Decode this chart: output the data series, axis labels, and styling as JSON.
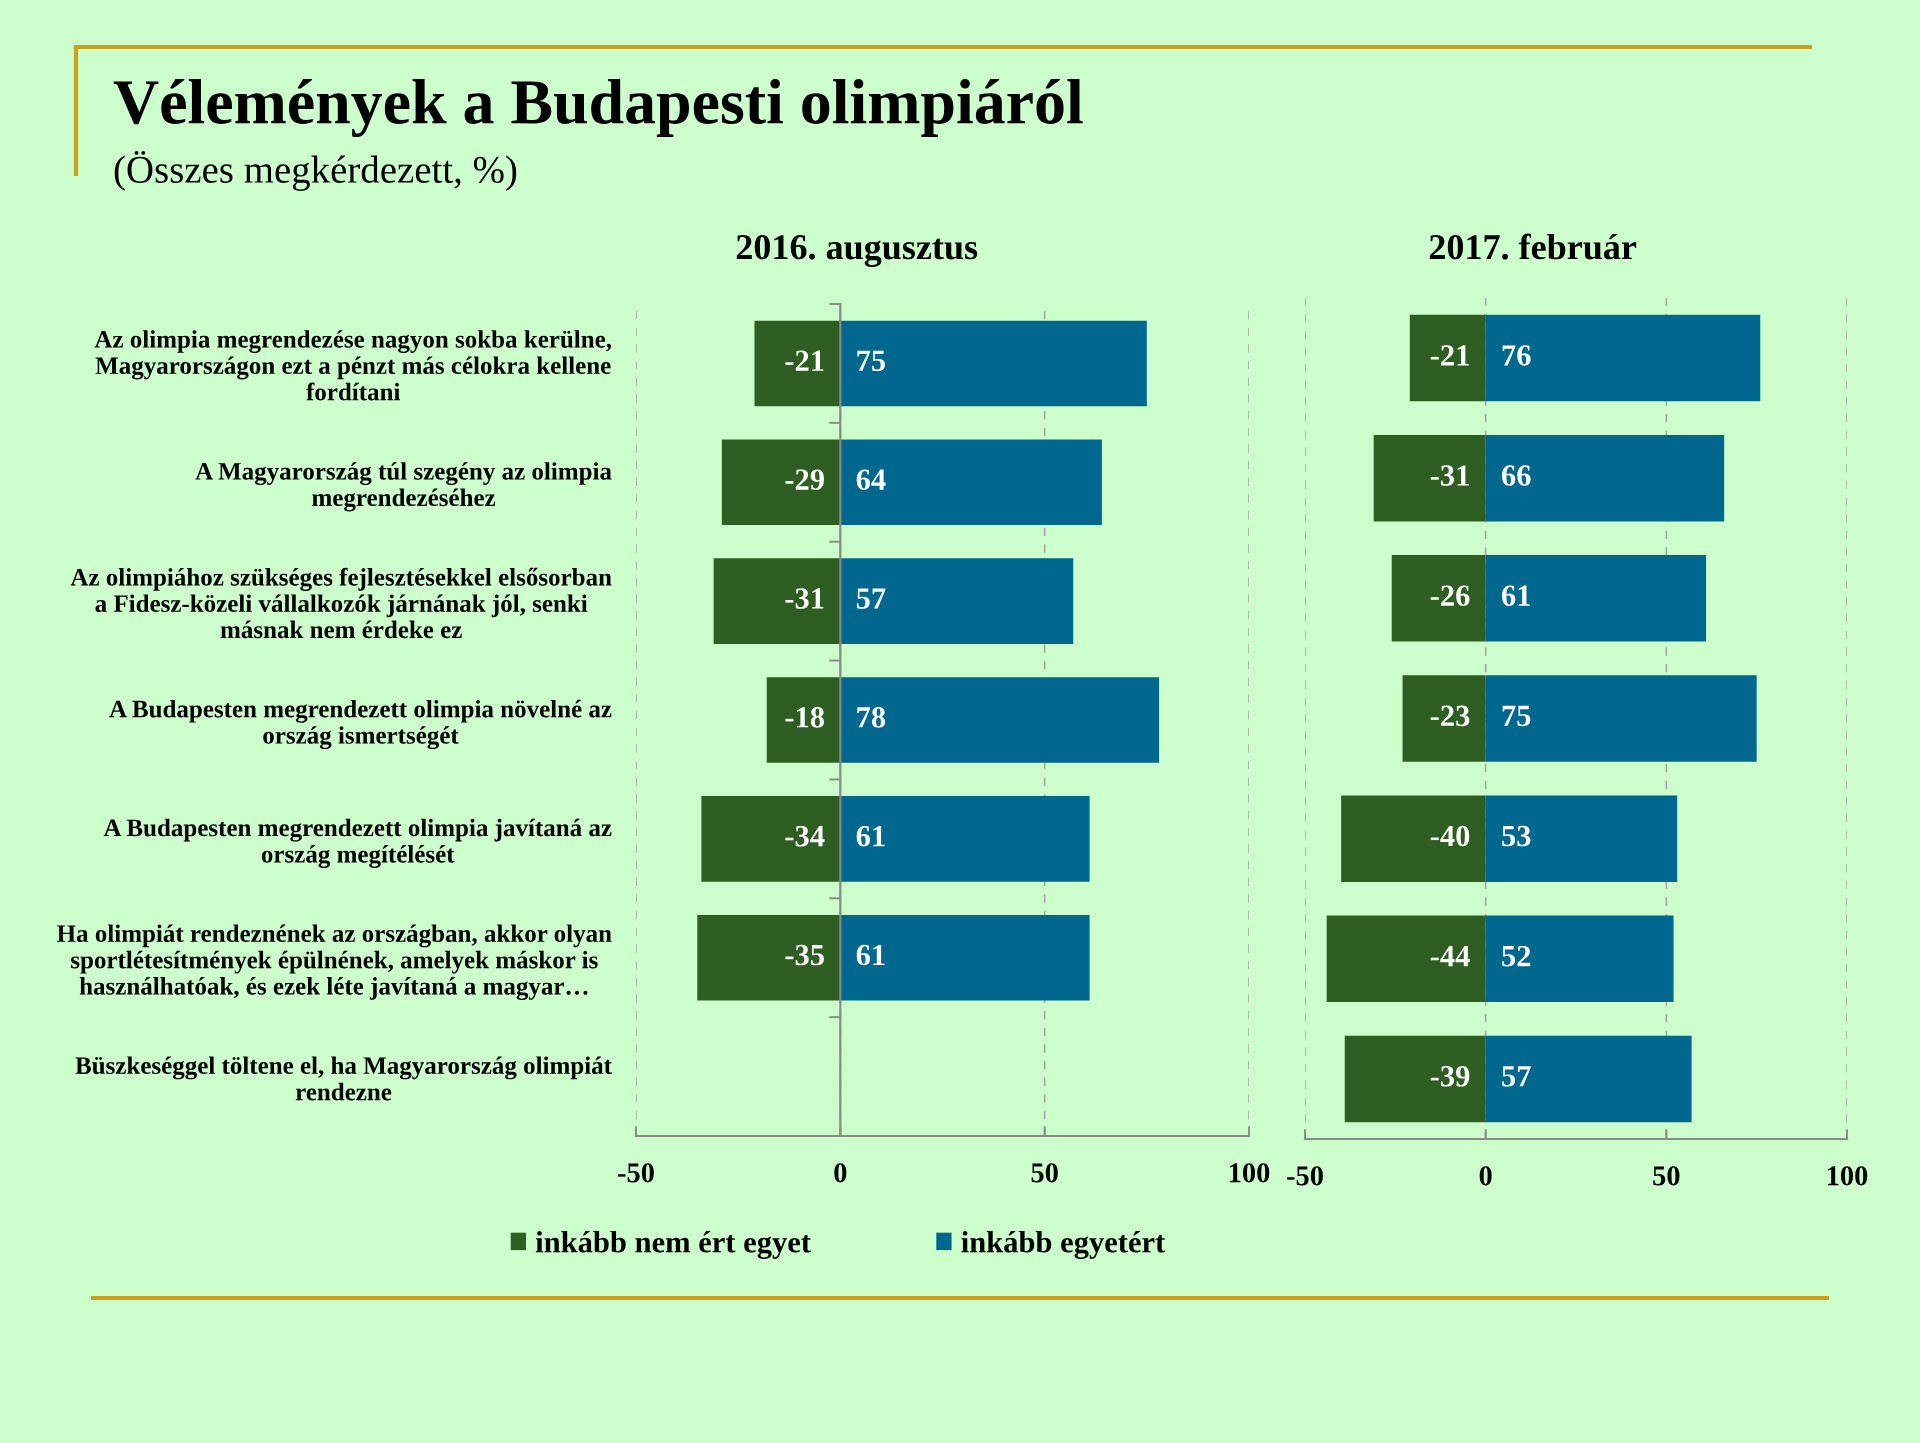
{
  "chart_data": [
    {
      "type": "bar",
      "orientation": "horizontal",
      "stacked": true,
      "title": "2016. augusztus",
      "annotations": [
        "Vélemények a Budapesti olimpiáról",
        "(Összes megkérdezett, %)"
      ],
      "categories": [
        "Az olimpia megrendezése nagyon sokba kerülne,\nMagyarországon ezt a pénzt más célokra kellene\nfordítani",
        "A Magyarország túl szegény az olimpia\nmegrendezéséhez",
        "Az olimpiához szükséges fejlesztésekkel elsősorban\na Fidesz-közeli vállalkozók járnának jól, senki\nmásnak nem érdeke ez",
        "A Budapesten megrendezett olimpia növelné az\nország ismertségét",
        "A Budapesten megrendezett olimpia javítaná az\nország megítélését",
        "Ha olimpiát rendeznének az országban, akkor olyan\nsportlétesítmények épülnének, amelyek máskor is\nhasználhatóak, és ezek léte javítaná a magyar…",
        "Büszkeséggel töltene el, ha Magyarország olimpiát\nrendezne"
      ],
      "series": [
        {
          "name": "inkább nem ért egyet",
          "color": "#2e5e22",
          "values": [
            -21,
            -29,
            -31,
            -18,
            -34,
            -35,
            null
          ]
        },
        {
          "name": "inkább egyetért",
          "color": "#00678f",
          "values": [
            75,
            64,
            57,
            78,
            61,
            61,
            null
          ]
        }
      ],
      "xlim": [
        -50,
        100
      ],
      "xticks": [
        -50,
        0,
        50,
        100
      ],
      "grid": "x",
      "data_labels": true,
      "legend": "bottom"
    },
    {
      "type": "bar",
      "orientation": "horizontal",
      "stacked": true,
      "title": "2017. február",
      "categories": [
        null,
        null,
        null,
        null,
        null,
        null,
        null
      ],
      "series": [
        {
          "color": "#2e5e22",
          "values": [
            -21,
            -31,
            -26,
            -23,
            -40,
            -44,
            -39
          ]
        },
        {
          "color": "#00678f",
          "values": [
            76,
            66,
            61,
            75,
            53,
            52,
            57
          ]
        }
      ],
      "xlim": [
        -50,
        100
      ],
      "xticks": [
        -50,
        0,
        50,
        100
      ],
      "grid": "x",
      "data_labels": true,
      "tick_labels": "x"
    }
  ]
}
